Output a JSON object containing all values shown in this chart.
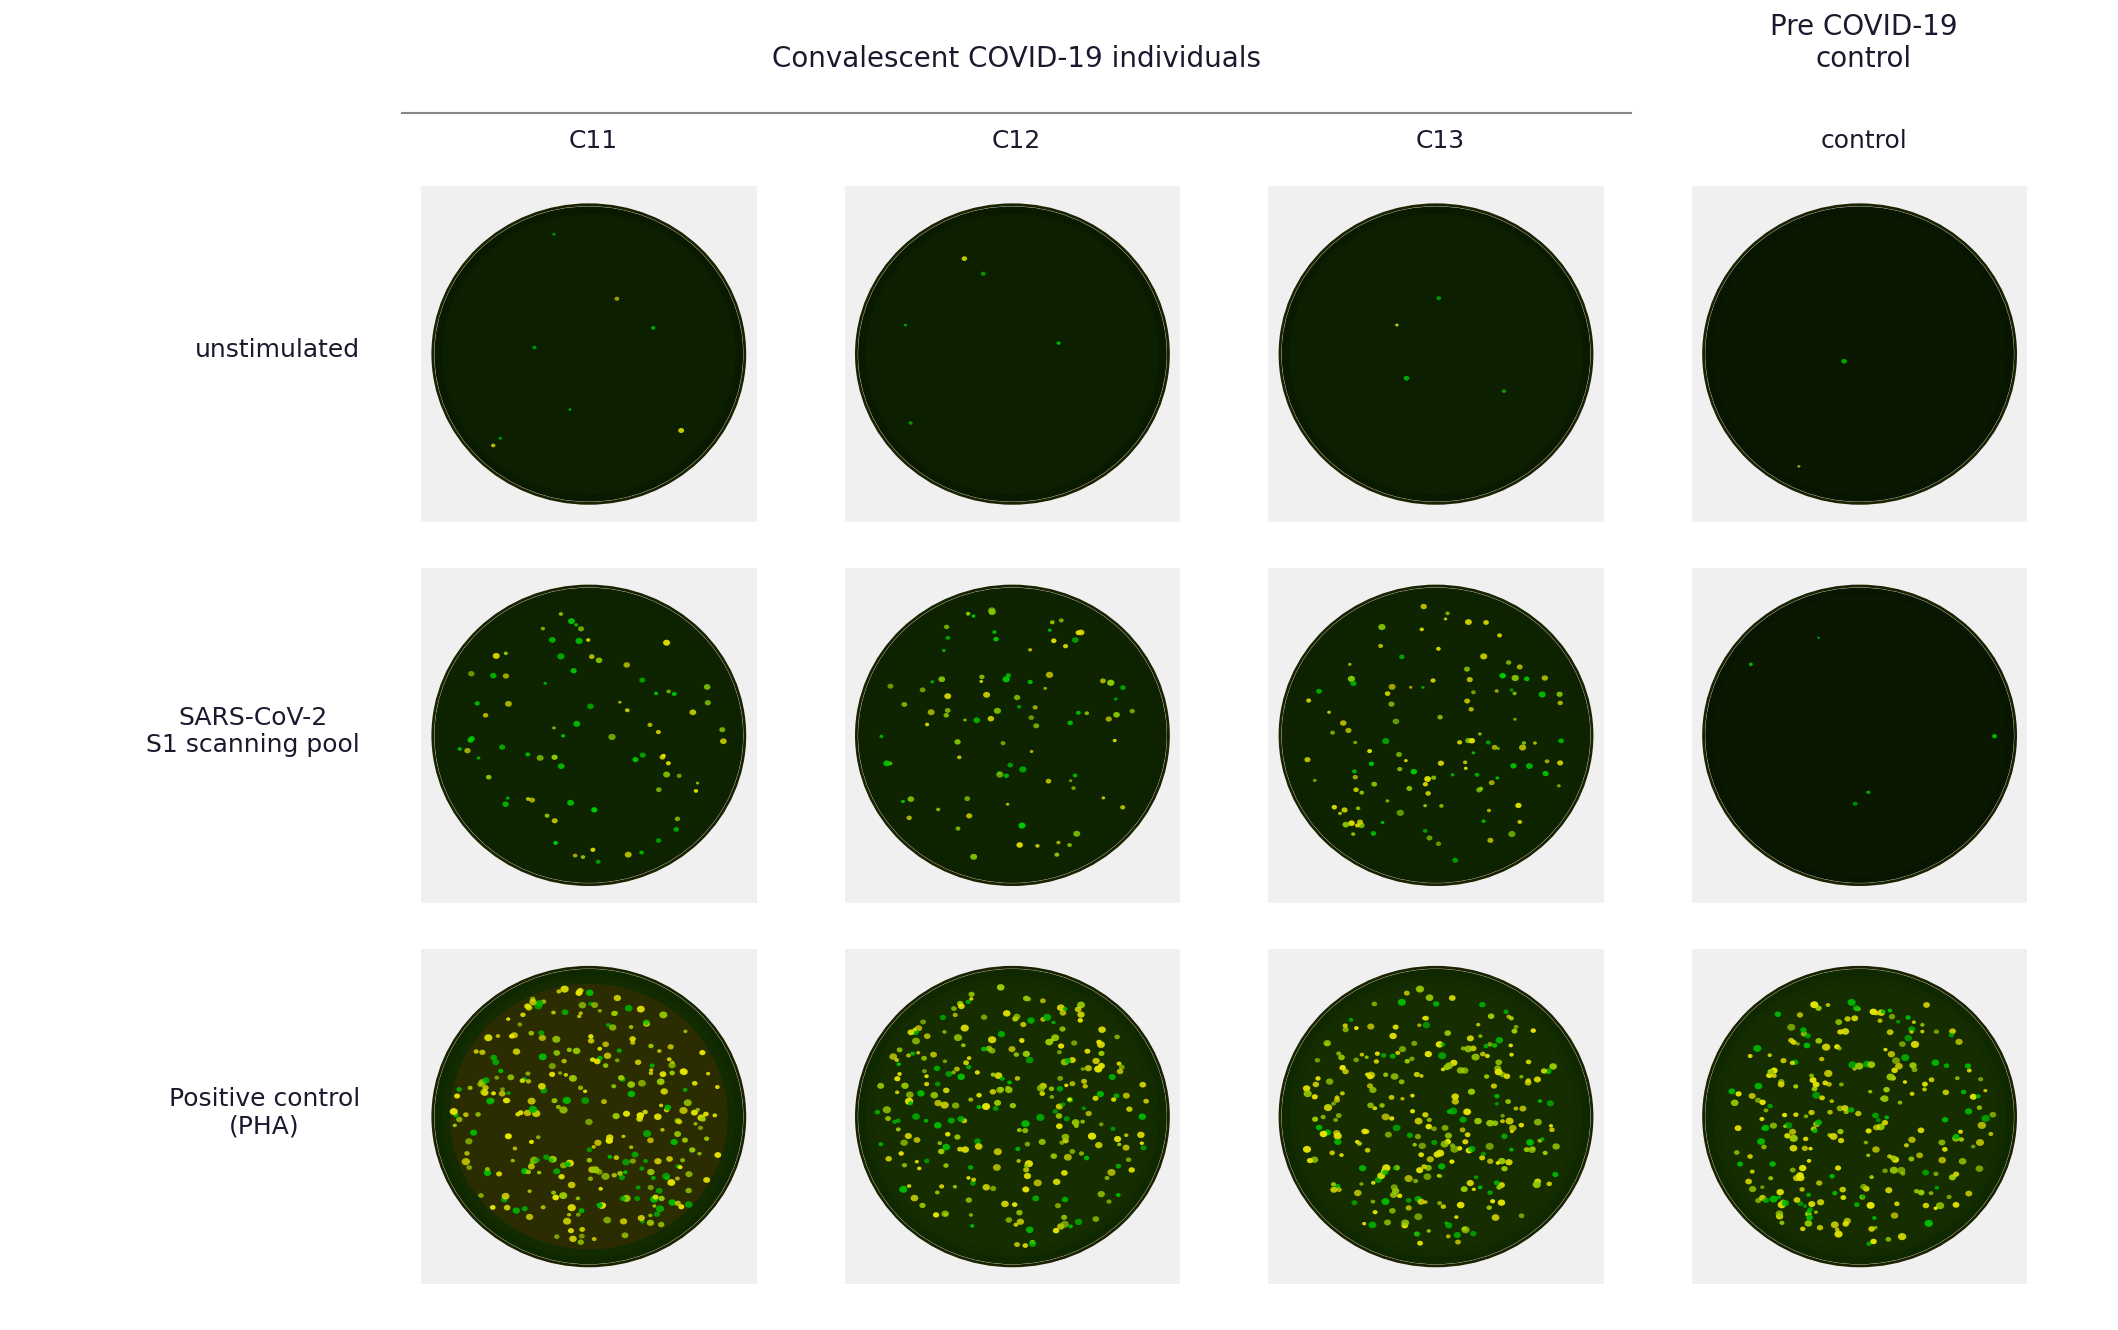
{
  "fig_width": 21.18,
  "fig_height": 13.3,
  "dpi": 100,
  "bg_color": "#ffffff",
  "text_color": "#1a1a2e",
  "font_size_label": 18,
  "font_size_header": 20,
  "font_size_col": 18,
  "rows": [
    "unstimulated",
    "SARS-CoV-2\nS1 scanning pool",
    "Positive control\n(PHA)"
  ],
  "cols": [
    "C11",
    "C12",
    "C13",
    "control"
  ],
  "col_header_main": "Convalescent COVID-19 individuals",
  "col_header_right": "Pre COVID-19\ncontrol",
  "well_dark_bg": "#0a1a00",
  "well_medium_bg": "#0d2000",
  "spot_colors_row0": {
    "green": "#00cc00",
    "yellow": "#cccc00"
  },
  "spot_colors_row1": {
    "green": "#00cc00",
    "yellow": "#cccc00"
  },
  "spot_colors_row2": {
    "green": "#00cc00",
    "yellow": "#cccc00"
  },
  "n_spots_row0": [
    8,
    5,
    4,
    2
  ],
  "n_spots_row1": [
    80,
    90,
    120,
    5
  ],
  "n_spots_row2": [
    300,
    280,
    290,
    280
  ],
  "seed": 42
}
